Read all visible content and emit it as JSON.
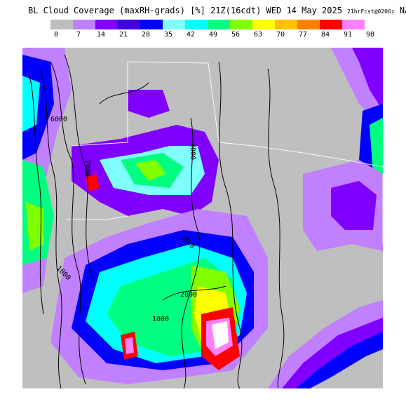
{
  "title": {
    "main": "BL Cloud Coverage (maxRH-grads) [%] 21Z(16cdt) WED 14 May 2025",
    "fcst": "21hrFcst@0206z",
    "model": "NAM"
  },
  "legend": {
    "swatches": [
      {
        "color": "#bebebe"
      },
      {
        "color": "#c080ff"
      },
      {
        "color": "#8000ff"
      },
      {
        "color": "#4000e0"
      },
      {
        "color": "#0000ff"
      },
      {
        "color": "#80ffff"
      },
      {
        "color": "#00ffff"
      },
      {
        "color": "#00ff80"
      },
      {
        "color": "#80ff00"
      },
      {
        "color": "#ffff00"
      },
      {
        "color": "#ffc000"
      },
      {
        "color": "#ff8000"
      },
      {
        "color": "#ff0000"
      },
      {
        "color": "#ff80ff"
      }
    ],
    "labels": [
      "0",
      "7",
      "14",
      "21",
      "28",
      "35",
      "42",
      "49",
      "56",
      "63",
      "70",
      "77",
      "84",
      "91",
      "98"
    ]
  },
  "contour_labels": [
    "6000",
    "4000",
    "2000",
    "1000",
    "3000",
    "2000",
    "1000"
  ]
}
